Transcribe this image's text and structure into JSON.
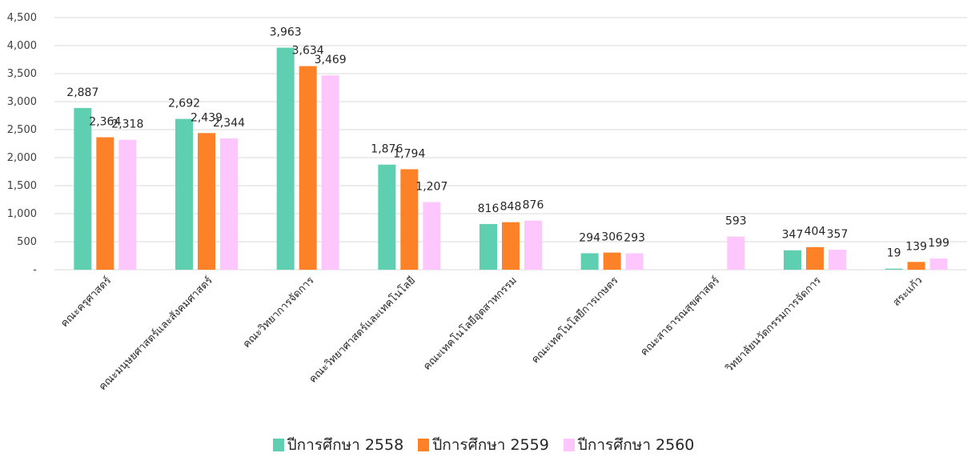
{
  "chart_data": {
    "type": "bar",
    "categories": [
      "คณะครุศาสตร์",
      "คณะมนุษยศาสตร์และสังคมศาสตร์",
      "คณะวิทยาการจัดการ",
      "คณะวิทยาศาสตร์และเทคโนโลยี",
      "คณะเทคโนโลยีอุตสาหกรรม",
      "คณะเทคโนโลยีการเกษตร",
      "คณะสาธารณสุขศาสตร์",
      "วิทยาลัยนวัตกรรมการจัดการ",
      "สระแก้ว"
    ],
    "series": [
      {
        "name": "ปีการศึกษา 2558",
        "color": "#5ecfb1",
        "values": [
          2887,
          2692,
          3963,
          1876,
          816,
          294,
          null,
          347,
          19
        ],
        "labels": [
          "2,887",
          "2,692",
          "3,963",
          "1,876",
          "816",
          "294",
          "",
          "347",
          "19"
        ]
      },
      {
        "name": "ปีการศึกษา 2559",
        "color": "#fd8127",
        "values": [
          2364,
          2439,
          3634,
          1794,
          848,
          306,
          null,
          404,
          139
        ],
        "labels": [
          "2,364",
          "2,439",
          "3,634",
          "1,794",
          "848",
          "306",
          "",
          "404",
          "139"
        ]
      },
      {
        "name": "ปีการศึกษา 2560",
        "color": "#fdc7fd",
        "values": [
          2318,
          2344,
          3469,
          1207,
          876,
          293,
          593,
          357,
          199
        ],
        "labels": [
          "2,318",
          "2,344",
          "3,469",
          "1,207",
          "876",
          "293",
          "593",
          "357",
          "199"
        ]
      }
    ],
    "yticks": [
      0,
      500,
      1000,
      1500,
      2000,
      2500,
      3000,
      3500,
      4000,
      4500
    ],
    "ytick_labels": [
      "-",
      "500",
      "1,000",
      "1,500",
      "2,000",
      "2,500",
      "3,000",
      "3,500",
      "4,000",
      "4,500"
    ],
    "ylim": [
      0,
      4500
    ],
    "grid": true,
    "legend": "bottom"
  }
}
